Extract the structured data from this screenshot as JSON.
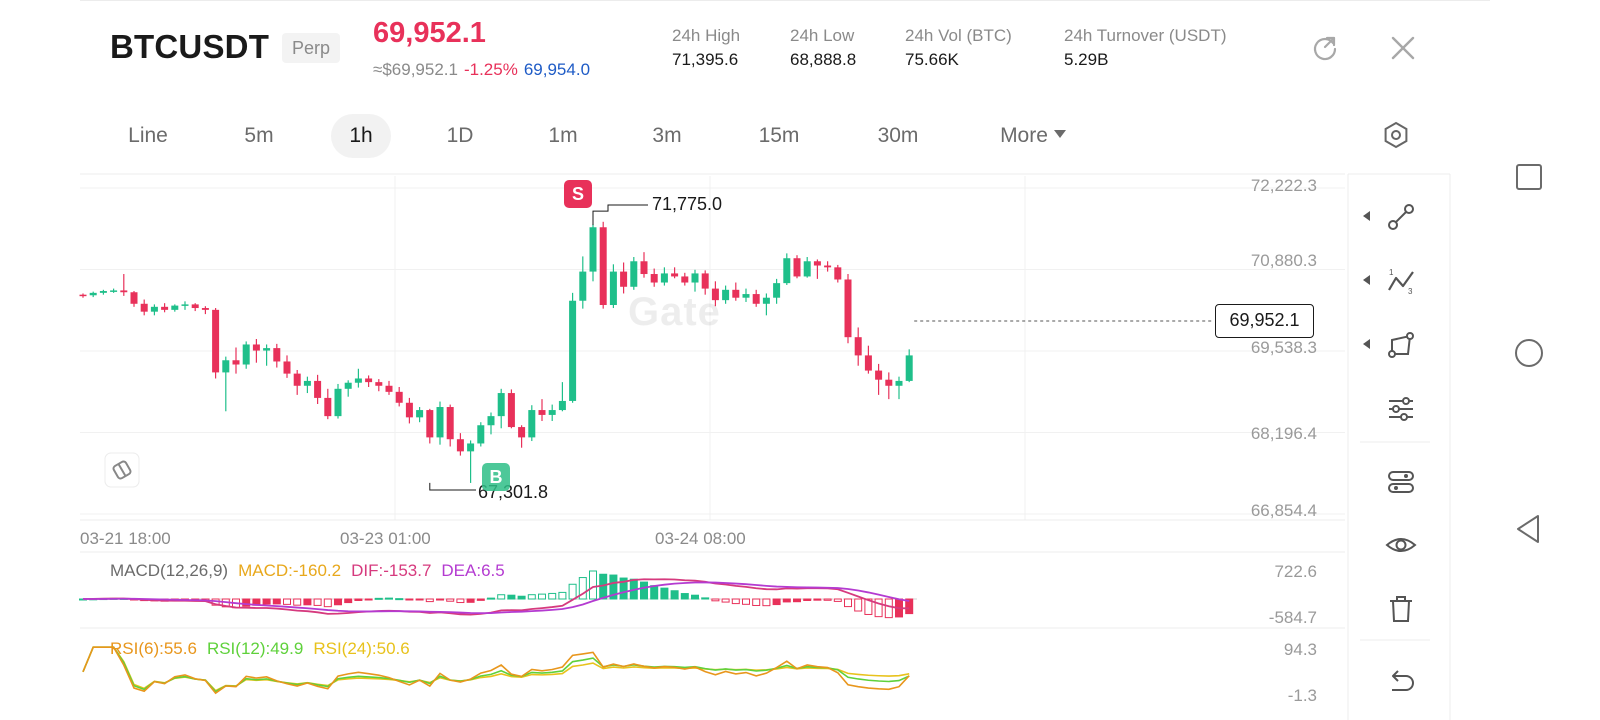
{
  "header": {
    "symbol": "BTCUSDT",
    "contract_type": "Perp",
    "last_price": "69,952.1",
    "usd_price": "≈$69,952.1",
    "change_pct": "-1.25%",
    "mark_price": "69,954.0",
    "stats": [
      {
        "label": "24h  High",
        "value": "71,395.6"
      },
      {
        "label": "24h  Low",
        "value": "68,888.8"
      },
      {
        "label": "24h  Vol (BTC)",
        "value": "75.66K"
      },
      {
        "label": "24h  Turnover (USDT)",
        "value": "5.29B"
      }
    ],
    "icons": {
      "rotate": "rotate-icon",
      "close": "close-icon"
    }
  },
  "timeframes": {
    "items": [
      "Line",
      "5m",
      "1h",
      "1D",
      "1m",
      "3m",
      "15m",
      "30m",
      "More"
    ],
    "selected": "1h"
  },
  "chart": {
    "watermark": "Gate",
    "price_axis": [
      "72,222.3",
      "70,880.3",
      "69,538.3",
      "68,196.4",
      "66,854.4"
    ],
    "current_price_tag": "69,952.1",
    "high_label": "71,775.0",
    "low_label": "67,301.8",
    "sell_marker": "S",
    "buy_marker": "B",
    "time_axis": [
      "03-21 18:00",
      "03-23 01:00",
      "03-24 08:00"
    ]
  },
  "macd": {
    "title": "MACD(12,26,9)",
    "macd": "MACD:-160.2",
    "dif": "DIF:-153.7",
    "dea": "DEA:6.5",
    "axis": [
      "722.6",
      "-584.7"
    ]
  },
  "rsi": {
    "rsi6": "RSI(6):55.6",
    "rsi12": "RSI(12):49.9",
    "rsi24": "RSI(24):50.6",
    "axis": [
      "94.3",
      "-1.3"
    ]
  },
  "colors": {
    "up": "#1fbf8a",
    "down": "#e8315a",
    "mark_price": "#1e5bc6",
    "macd": "#e8a81c",
    "dif": "#d63a7e",
    "dea": "#b43bd1",
    "rsi6": "#e8961c",
    "rsi12": "#5fd13b",
    "rsi24": "#e8c21c"
  },
  "toolbar": [
    "trendline-icon",
    "chart-line-icon",
    "shape-icon",
    "indicator-settings-icon",
    "layout-icon",
    "eye-icon",
    "trash-icon",
    "undo-icon"
  ],
  "android_nav": [
    "recents-icon",
    "home-icon",
    "back-icon"
  ],
  "chart_data": {
    "type": "candlestick",
    "interval": "1h",
    "price_axis_ticks": [
      72222.3,
      70880.3,
      69538.3,
      68196.4,
      66854.4
    ],
    "time_axis_labels": [
      "03-21 18:00",
      "03-23 01:00",
      "03-24 08:00"
    ],
    "last_price": 69952.1,
    "high": 71775.0,
    "low": 67301.8,
    "candles": [
      [
        70400,
        70420,
        70350,
        70390
      ],
      [
        70390,
        70450,
        70360,
        70430
      ],
      [
        70430,
        70480,
        70400,
        70460
      ],
      [
        70460,
        70500,
        70430,
        70470
      ],
      [
        70470,
        70740,
        70380,
        70440
      ],
      [
        70440,
        70460,
        70200,
        70250
      ],
      [
        70250,
        70320,
        70060,
        70120
      ],
      [
        70120,
        70240,
        70060,
        70200
      ],
      [
        70200,
        70260,
        70110,
        70150
      ],
      [
        70150,
        70240,
        70120,
        70220
      ],
      [
        70220,
        70290,
        70150,
        70240
      ],
      [
        70240,
        70260,
        70130,
        70180
      ],
      [
        70180,
        70210,
        70080,
        70150
      ],
      [
        70150,
        70180,
        69020,
        69120
      ],
      [
        69120,
        69380,
        68480,
        69320
      ],
      [
        69320,
        69530,
        69100,
        69250
      ],
      [
        69250,
        69630,
        69180,
        69580
      ],
      [
        69580,
        69670,
        69280,
        69480
      ],
      [
        69480,
        69580,
        69230,
        69520
      ],
      [
        69520,
        69590,
        69200,
        69300
      ],
      [
        69300,
        69400,
        69030,
        69100
      ],
      [
        69100,
        69160,
        68750,
        68900
      ],
      [
        68900,
        69050,
        68780,
        68980
      ],
      [
        68980,
        69080,
        68600,
        68700
      ],
      [
        68700,
        68850,
        68350,
        68400
      ],
      [
        68400,
        68930,
        68360,
        68850
      ],
      [
        68850,
        68990,
        68720,
        68950
      ],
      [
        68950,
        69180,
        68870,
        69020
      ],
      [
        69020,
        69070,
        68880,
        68960
      ],
      [
        68960,
        69010,
        68810,
        68900
      ],
      [
        68900,
        68980,
        68750,
        68800
      ],
      [
        68800,
        68880,
        68560,
        68620
      ],
      [
        68620,
        68700,
        68280,
        68380
      ],
      [
        68380,
        68550,
        68300,
        68500
      ],
      [
        68500,
        68520,
        67950,
        68050
      ],
      [
        68050,
        68640,
        67930,
        68550
      ],
      [
        68550,
        68590,
        67900,
        68020
      ],
      [
        68020,
        68120,
        67750,
        67820
      ],
      [
        67820,
        68000,
        67300,
        67950
      ],
      [
        67950,
        68300,
        67900,
        68250
      ],
      [
        68250,
        68460,
        68100,
        68400
      ],
      [
        68400,
        68850,
        68200,
        68780
      ],
      [
        68780,
        68840,
        68200,
        68220
      ],
      [
        68220,
        68250,
        67880,
        68050
      ],
      [
        68050,
        68580,
        67990,
        68500
      ],
      [
        68500,
        68680,
        68320,
        68420
      ],
      [
        68420,
        68590,
        68320,
        68500
      ],
      [
        68500,
        68960,
        68480,
        68650
      ],
      [
        68650,
        70430,
        68620,
        70300
      ],
      [
        70300,
        71030,
        70170,
        70780
      ],
      [
        70780,
        71560,
        70620,
        71510
      ],
      [
        71510,
        71600,
        70170,
        70230
      ],
      [
        70230,
        70900,
        70180,
        70780
      ],
      [
        70780,
        70930,
        70420,
        70530
      ],
      [
        70530,
        71020,
        70480,
        70950
      ],
      [
        70950,
        71100,
        70680,
        70740
      ],
      [
        70740,
        70830,
        70530,
        70600
      ],
      [
        70600,
        70850,
        70550,
        70750
      ],
      [
        70750,
        70850,
        70670,
        70700
      ],
      [
        70700,
        70760,
        70550,
        70600
      ],
      [
        70600,
        70810,
        70450,
        70750
      ],
      [
        70750,
        70800,
        70400,
        70500
      ],
      [
        70500,
        70620,
        70210,
        70310
      ],
      [
        70310,
        70550,
        70250,
        70480
      ],
      [
        70480,
        70600,
        70300,
        70350
      ],
      [
        70350,
        70500,
        70280,
        70410
      ],
      [
        70410,
        70480,
        70200,
        70250
      ],
      [
        70250,
        70420,
        70060,
        70350
      ],
      [
        70350,
        70660,
        70250,
        70590
      ],
      [
        70590,
        71080,
        70560,
        71000
      ],
      [
        71000,
        71050,
        70670,
        70700
      ],
      [
        70700,
        71020,
        70680,
        70950
      ],
      [
        70950,
        70980,
        70660,
        70880
      ],
      [
        70880,
        70950,
        70780,
        70850
      ],
      [
        70850,
        70890,
        70600,
        70650
      ],
      [
        70650,
        70740,
        69600,
        69700
      ],
      [
        69700,
        69860,
        69230,
        69400
      ],
      [
        69400,
        69560,
        69100,
        69150
      ],
      [
        69150,
        69260,
        68750,
        69000
      ],
      [
        69000,
        69120,
        68680,
        68900
      ],
      [
        68900,
        69050,
        68680,
        68980
      ],
      [
        68980,
        69500,
        68960,
        69400
      ]
    ],
    "indicators": {
      "MACD(12,26,9)": {
        "MACD": -160.2,
        "DIF": -153.7,
        "DEA": 6.5,
        "axis": [
          722.6,
          -584.7
        ]
      },
      "RSI": {
        "RSI(6)": 55.6,
        "RSI(12)": 49.9,
        "RSI(24)": 50.6,
        "axis": [
          94.3,
          -1.3
        ]
      }
    }
  }
}
